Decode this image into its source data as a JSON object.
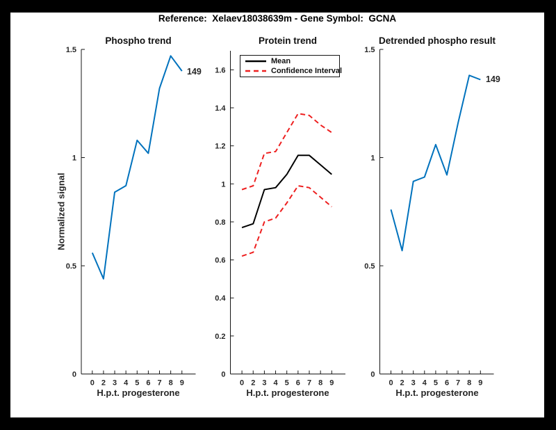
{
  "figure_title": "Reference:  Xelaev18038639m - Gene Symbol:  GCNA",
  "colors": {
    "background": "#000000",
    "figure": "#ffffff",
    "blue": "#0072bd",
    "red": "#ee2020",
    "black_line": "#000000",
    "axis": "#151515",
    "tick_text": "#262626"
  },
  "chart_data": [
    {
      "type": "line",
      "title": "Phospho trend",
      "xlabel": "H.p.t. progesterone",
      "ylabel": "Normalized signal",
      "x": [
        0,
        2,
        3,
        4,
        5,
        6,
        7,
        8,
        9
      ],
      "x_tick_labels": [
        "0",
        "2",
        "3",
        "4",
        "5",
        "6",
        "7",
        "8",
        "9"
      ],
      "series": [
        {
          "name": "phospho-signal",
          "color": "blue",
          "style": "solid",
          "values": [
            0.56,
            0.44,
            0.84,
            0.87,
            1.08,
            1.02,
            1.32,
            1.47,
            1.4
          ]
        }
      ],
      "end_label": "149",
      "ylim": [
        0,
        1.5
      ],
      "yticks": [
        0,
        0.5,
        1,
        1.5
      ],
      "ytick_labels": [
        "0",
        "0.5",
        "1",
        "1.5"
      ],
      "grid": false
    },
    {
      "type": "line",
      "title": "Protein trend",
      "xlabel": "H.p.t. progesterone",
      "ylabel": "",
      "x": [
        0,
        2,
        3,
        4,
        5,
        6,
        7,
        8,
        9
      ],
      "x_tick_labels": [
        "0",
        "2",
        "3",
        "4",
        "5",
        "6",
        "7",
        "8",
        "9"
      ],
      "series": [
        {
          "name": "mean",
          "color": "black_line",
          "style": "solid",
          "values": [
            0.77,
            0.79,
            0.97,
            0.98,
            1.05,
            1.15,
            1.15,
            1.1,
            1.05
          ]
        },
        {
          "name": "confidence-interval-upper",
          "color": "red",
          "style": "dashed",
          "values": [
            0.97,
            0.99,
            1.16,
            1.17,
            1.27,
            1.37,
            1.36,
            1.31,
            1.27
          ]
        },
        {
          "name": "confidence-interval-lower",
          "color": "red",
          "style": "dashed",
          "values": [
            0.62,
            0.64,
            0.8,
            0.82,
            0.9,
            0.99,
            0.98,
            0.93,
            0.88
          ]
        }
      ],
      "legend": {
        "position": "top-left",
        "entries": [
          {
            "label": "Mean",
            "color": "black_line",
            "style": "solid"
          },
          {
            "label": "Confidence Interval",
            "color": "red",
            "style": "dashed"
          }
        ]
      },
      "ylim": [
        0,
        1.7
      ],
      "yticks": [
        0,
        0.2,
        0.4,
        0.6,
        0.8,
        1,
        1.2,
        1.4,
        1.6
      ],
      "ytick_labels": [
        "0",
        "0.2",
        "0.4",
        "0.6",
        "0.8",
        "1",
        "1.2",
        "1.4",
        "1.6"
      ],
      "grid": false
    },
    {
      "type": "line",
      "title": "Detrended phospho result",
      "xlabel": "H.p.t. progesterone",
      "ylabel": "",
      "x": [
        0,
        2,
        3,
        4,
        5,
        6,
        7,
        8,
        9
      ],
      "x_tick_labels": [
        "0",
        "2",
        "3",
        "4",
        "5",
        "6",
        "7",
        "8",
        "9"
      ],
      "series": [
        {
          "name": "detrended-phospho",
          "color": "blue",
          "style": "solid",
          "values": [
            0.76,
            0.57,
            0.89,
            0.91,
            1.06,
            0.92,
            1.16,
            1.38,
            1.36
          ]
        }
      ],
      "end_label": "149",
      "ylim": [
        0,
        1.5
      ],
      "yticks": [
        0,
        0.5,
        1,
        1.5
      ],
      "ytick_labels": [
        "0",
        "0.5",
        "1",
        "1.5"
      ],
      "grid": false
    }
  ]
}
